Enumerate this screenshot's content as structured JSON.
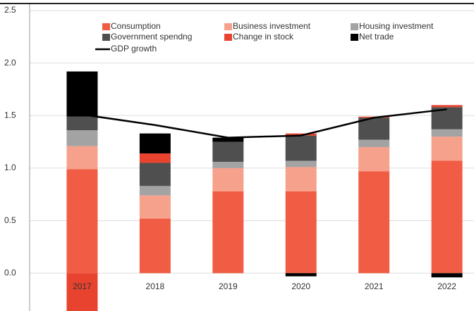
{
  "chart_data": {
    "type": "stacked_bar",
    "categories": [
      "2017",
      "2018",
      "2019",
      "2020",
      "2021",
      "2022"
    ],
    "series": [
      {
        "name": "Consumption",
        "color": "#f15d44",
        "values": [
          0.99,
          0.52,
          0.78,
          0.78,
          0.97,
          1.07
        ]
      },
      {
        "name": "Business investment",
        "color": "#f6a18c",
        "values": [
          0.22,
          0.22,
          0.22,
          0.23,
          0.23,
          0.23
        ]
      },
      {
        "name": "Housing investment",
        "color": "#a3a3a3",
        "values": [
          0.15,
          0.09,
          0.06,
          0.06,
          0.07,
          0.07
        ]
      },
      {
        "name": "Government spendng",
        "color": "#4f4f4f",
        "values": [
          0.13,
          0.22,
          0.19,
          0.24,
          0.21,
          0.21
        ]
      },
      {
        "name": "Change in stock",
        "color": "#e8432e",
        "values": [
          -0.36,
          0.09,
          0,
          0.02,
          0.01,
          0.02
        ]
      },
      {
        "name": "Net trade",
        "color": "#000000",
        "values": [
          0.43,
          0.19,
          0.04,
          -0.03,
          0,
          -0.04
        ]
      }
    ],
    "line": {
      "name": "GDP growth",
      "color": "#000000",
      "values": [
        1.51,
        1.41,
        1.29,
        1.31,
        1.48,
        1.56
      ]
    },
    "ylim": [
      -0.36,
      2.56
    ],
    "yticks": [
      {
        "value": 0,
        "label": "0.0"
      },
      {
        "value": 0.5,
        "label": "0.5"
      },
      {
        "value": 1,
        "label": "1.0"
      },
      {
        "value": 1.5,
        "label": "1.5"
      },
      {
        "value": 2,
        "label": "2.0"
      },
      {
        "value": 2.5,
        "label": "2.5"
      }
    ],
    "grid": true
  }
}
